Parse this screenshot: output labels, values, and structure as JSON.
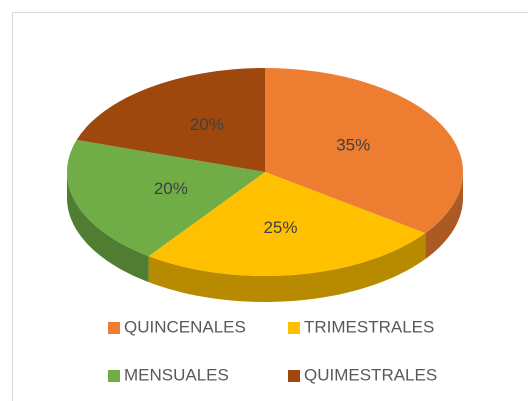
{
  "chart_data": {
    "type": "pie",
    "categories": [
      "QUINCENALES",
      "TRIMESTRALES",
      "MENSUALES",
      "QUIMESTRALES"
    ],
    "values": [
      35,
      25,
      20,
      20
    ],
    "value_labels": [
      "35%",
      "25%",
      "20%",
      "20%"
    ],
    "colors": [
      "#ED7D31",
      "#FFC000",
      "#70AD47",
      "#9E480E"
    ],
    "legend": "bottom"
  }
}
